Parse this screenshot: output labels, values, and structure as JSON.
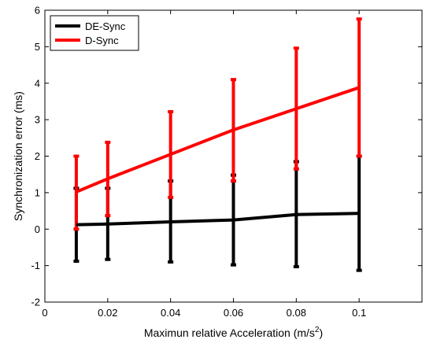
{
  "chart_data": {
    "type": "line",
    "xlabel": "Maximun relative Acceleration (m/s",
    "xlabel_superscript": "2",
    "xlabel_suffix": ")",
    "ylabel": "Synchronization error (ms)",
    "xlim": [
      0,
      0.12
    ],
    "ylim": [
      -2,
      6
    ],
    "xticks": [
      {
        "value": 0,
        "label": "0"
      },
      {
        "value": 0.02,
        "label": "0.02"
      },
      {
        "value": 0.04,
        "label": "0.04"
      },
      {
        "value": 0.06,
        "label": "0.06"
      },
      {
        "value": 0.08,
        "label": "0.08"
      },
      {
        "value": 0.1,
        "label": "0.1"
      }
    ],
    "yticks": [
      {
        "value": -2,
        "label": "-2"
      },
      {
        "value": -1,
        "label": "-1"
      },
      {
        "value": 0,
        "label": "0"
      },
      {
        "value": 1,
        "label": "1"
      },
      {
        "value": 2,
        "label": "2"
      },
      {
        "value": 3,
        "label": "3"
      },
      {
        "value": 4,
        "label": "4"
      },
      {
        "value": 5,
        "label": "5"
      },
      {
        "value": 6,
        "label": "6"
      }
    ],
    "grid": false,
    "legend_position": "top-left",
    "x": [
      0.01,
      0.02,
      0.04,
      0.06,
      0.08,
      0.1
    ],
    "series": [
      {
        "name": "DE-Sync",
        "color": "#000000",
        "values": [
          0.12,
          0.14,
          0.2,
          0.25,
          0.4,
          0.43
        ],
        "err_low": [
          -0.88,
          -0.83,
          -0.9,
          -0.98,
          -1.03,
          -1.13
        ],
        "err_high": [
          1.12,
          1.12,
          1.32,
          1.48,
          1.85,
          2.0
        ]
      },
      {
        "name": "D-Sync",
        "color": "#ff0000",
        "values": [
          1.02,
          1.38,
          2.05,
          2.72,
          3.3,
          3.88
        ],
        "err_low": [
          0.0,
          0.37,
          0.87,
          1.32,
          1.65,
          2.0
        ],
        "err_high": [
          2.0,
          2.38,
          3.22,
          4.1,
          4.96,
          5.76
        ]
      }
    ]
  }
}
